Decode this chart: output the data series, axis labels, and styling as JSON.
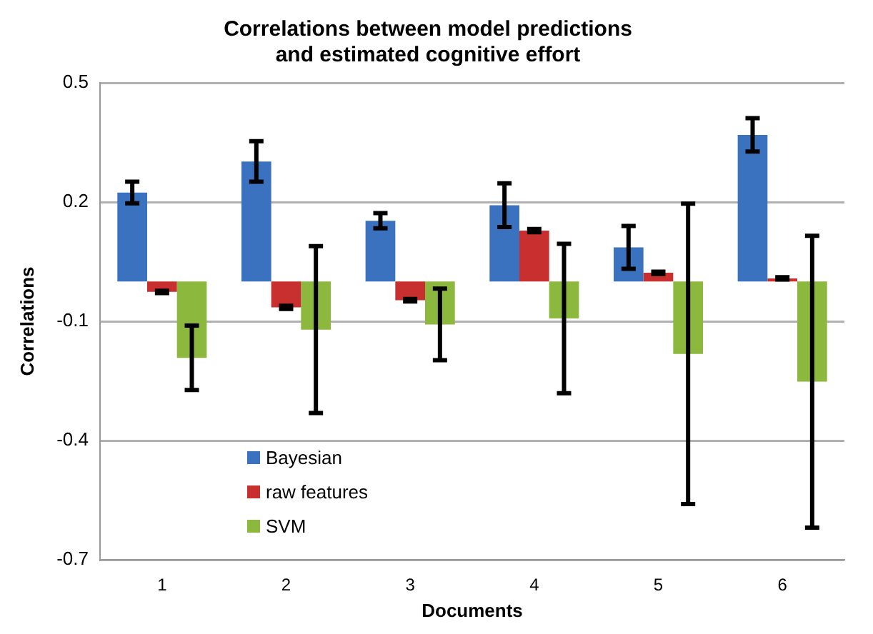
{
  "chart_data": {
    "type": "bar",
    "title": "Correlations between model predictions\nand estimated cognitive effort",
    "xlabel": "Documents",
    "ylabel": "Correlations",
    "categories": [
      "1",
      "2",
      "3",
      "4",
      "5",
      "6"
    ],
    "series": [
      {
        "name": "Bayesian",
        "color": "#3a72c0",
        "values": [
          0.224,
          0.302,
          0.153,
          0.192,
          0.086,
          0.369
        ],
        "errors": [
          0.027,
          0.051,
          0.019,
          0.055,
          0.054,
          0.042
        ]
      },
      {
        "name": "raw features",
        "color": "#c8302f",
        "values": [
          -0.026,
          -0.065,
          -0.047,
          0.128,
          0.022,
          0.008
        ],
        "errors": [
          0.003,
          0.004,
          0.003,
          0.004,
          0.003,
          0.003
        ]
      },
      {
        "name": "SVM",
        "color": "#8cb83e",
        "values": [
          -0.192,
          -0.121,
          -0.108,
          -0.093,
          -0.182,
          -0.252
        ],
        "errors": [
          0.081,
          0.21,
          0.09,
          0.188,
          0.378,
          0.367
        ]
      }
    ],
    "ylim": [
      -0.7,
      0.5
    ],
    "yticks": [
      -0.7,
      -0.4,
      -0.1,
      0.2,
      0.5
    ],
    "grid": "y",
    "legend": "bottom left"
  }
}
